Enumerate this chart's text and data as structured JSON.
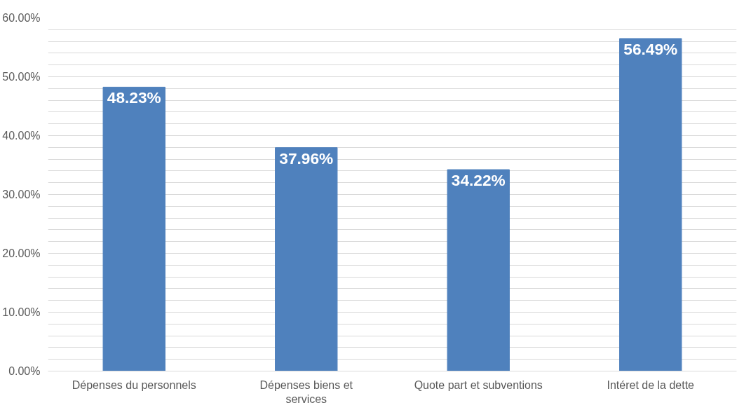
{
  "chart_data": {
    "type": "bar",
    "categories": [
      "Dépenses du personnels",
      "Dépenses biens et services",
      "Quote part et subventions",
      "Intéret de la dette"
    ],
    "values": [
      48.23,
      37.96,
      34.22,
      56.49
    ],
    "value_labels": [
      "48.23%",
      "37.96%",
      "34.22%",
      "56.49%"
    ],
    "color": "#4f81bd",
    "ylim": [
      0,
      60
    ],
    "yticks": [
      {
        "value": 0,
        "label": "0.00%"
      },
      {
        "value": 2,
        "label": null
      },
      {
        "value": 4,
        "label": null
      },
      {
        "value": 6,
        "label": null
      },
      {
        "value": 8,
        "label": null
      },
      {
        "value": 10,
        "label": "10.00%"
      },
      {
        "value": 12,
        "label": null
      },
      {
        "value": 14,
        "label": null
      },
      {
        "value": 16,
        "label": null
      },
      {
        "value": 18,
        "label": null
      },
      {
        "value": 20,
        "label": "20.00%"
      },
      {
        "value": 22,
        "label": null
      },
      {
        "value": 24,
        "label": null
      },
      {
        "value": 26,
        "label": null
      },
      {
        "value": 28,
        "label": null
      },
      {
        "value": 30,
        "label": "30.00%"
      },
      {
        "value": 32,
        "label": null
      },
      {
        "value": 34,
        "label": null
      },
      {
        "value": 36,
        "label": null
      },
      {
        "value": 38,
        "label": null
      },
      {
        "value": 40,
        "label": "40.00%"
      },
      {
        "value": 42,
        "label": null
      },
      {
        "value": 44,
        "label": null
      },
      {
        "value": 46,
        "label": null
      },
      {
        "value": 48,
        "label": null
      },
      {
        "value": 50,
        "label": "50.00%"
      },
      {
        "value": 52,
        "label": null
      },
      {
        "value": 54,
        "label": null
      },
      {
        "value": 56,
        "label": null
      },
      {
        "value": 58,
        "label": null
      },
      {
        "value": 60,
        "label": "60.00%"
      }
    ],
    "grid": "y"
  }
}
